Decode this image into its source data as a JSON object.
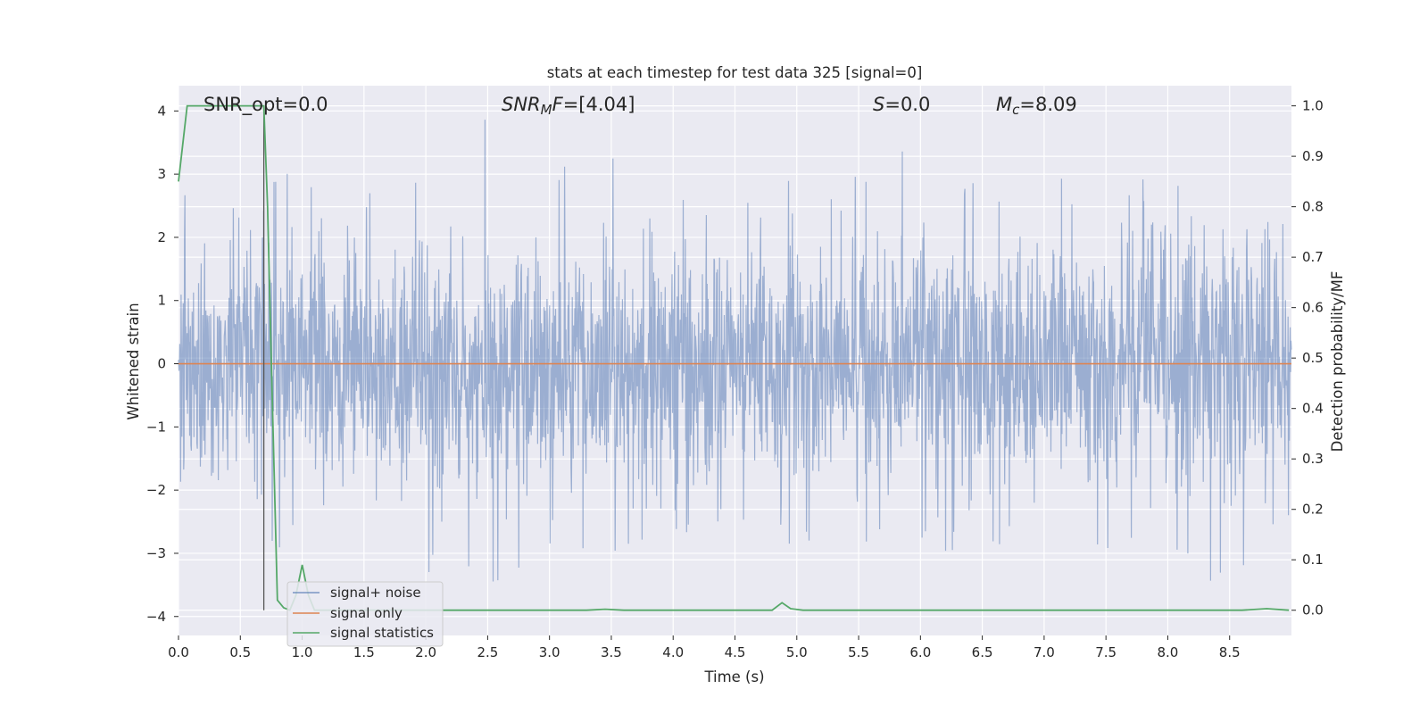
{
  "chart_data": {
    "type": "line",
    "title": "stats at each timestep for test data 325 [signal=0]",
    "xlabel": "Time (s)",
    "ylabel": "Whitened strain",
    "ylabel_right": "Detection probability/MF",
    "xlim": [
      0.0,
      9.0
    ],
    "ylim": [
      -4.3,
      4.4
    ],
    "ylim_right": [
      -0.05,
      1.04
    ],
    "x_ticks": [
      "0.0",
      "0.5",
      "1.0",
      "1.5",
      "2.0",
      "2.5",
      "3.0",
      "3.5",
      "4.0",
      "4.5",
      "5.0",
      "5.5",
      "6.0",
      "6.5",
      "7.0",
      "7.5",
      "8.0",
      "8.5"
    ],
    "y_ticks": [
      "4",
      "3",
      "2",
      "1",
      "0",
      "−1",
      "−2",
      "−3",
      "−4"
    ],
    "y_ticks_right": [
      "1.0",
      "0.9",
      "0.8",
      "0.7",
      "0.6",
      "0.5",
      "0.4",
      "0.3",
      "0.2",
      "0.1",
      "0.0"
    ],
    "grid": true,
    "annotations": {
      "snr_opt": "SNR_opt=0.0",
      "snr_mf_var": "SNR",
      "snr_mf_sub": "M",
      "snr_mf_rest": "F=[4.04]",
      "s_var": "S",
      "s_rest": "=0.0",
      "mc_var": "M",
      "mc_sub": "c",
      "mc_rest": "=8.09"
    },
    "vline_x": 0.69,
    "colors": {
      "background": "#eaeaf2",
      "grid": "#ffffff",
      "noise": "#4c72b0",
      "signal": "#dd8452",
      "statistics": "#55a868",
      "vline": "#555555"
    },
    "series": [
      {
        "name": "signal+ noise",
        "description_of_shape": "dense noise spanning roughly -2.6 to 2.7 with spikes up to about 4.0 and down to about -3.9",
        "x": [
          0.0,
          0.5,
          1.0,
          1.5,
          2.0,
          2.5,
          3.0,
          3.5,
          4.0,
          4.5,
          5.0,
          5.5,
          6.0,
          6.5,
          7.0,
          7.5,
          8.0,
          8.5,
          9.0
        ],
        "peak_positive": [
          2.7,
          2.6,
          3.3,
          2.8,
          3.8,
          4.0,
          3.2,
          3.3,
          3.2,
          2.8,
          3.0,
          3.1,
          3.7,
          2.9,
          3.3,
          2.7,
          3.3,
          3.2,
          2.5
        ],
        "peak_negative": [
          -2.3,
          -2.9,
          -3.1,
          -2.7,
          -3.3,
          -3.5,
          -3.5,
          -3.2,
          -2.6,
          -2.9,
          -3.0,
          -3.2,
          -3.0,
          -2.9,
          -3.0,
          -3.0,
          -3.3,
          -3.9,
          -2.5
        ]
      },
      {
        "name": "signal only",
        "x": [
          0.0,
          9.0
        ],
        "y": [
          0.0,
          0.0
        ]
      },
      {
        "name": "signal statistics",
        "axis": "right",
        "x": [
          0.0,
          0.07,
          0.12,
          0.2,
          0.6,
          0.69,
          0.72,
          0.75,
          0.8,
          0.85,
          0.9,
          0.95,
          1.0,
          1.05,
          1.1,
          1.5,
          2.0,
          3.0,
          3.3,
          3.45,
          3.6,
          4.0,
          4.5,
          4.8,
          4.88,
          4.95,
          5.05,
          5.5,
          6.0,
          7.0,
          8.0,
          8.6,
          8.8,
          8.98
        ],
        "y": [
          0.85,
          1.0,
          1.0,
          1.0,
          1.0,
          1.0,
          0.8,
          0.5,
          0.02,
          0.005,
          0.0,
          0.03,
          0.09,
          0.03,
          0.0,
          0.0,
          0.0,
          0.0,
          0.0,
          0.002,
          0.0,
          0.0,
          0.0,
          0.0,
          0.015,
          0.003,
          0.0,
          0.0,
          0.0,
          0.0,
          0.0,
          0.0,
          0.003,
          0.0
        ]
      }
    ],
    "legend": {
      "placement": "lower-left",
      "entries": [
        "signal+ noise",
        "signal only",
        "signal statistics"
      ]
    }
  }
}
